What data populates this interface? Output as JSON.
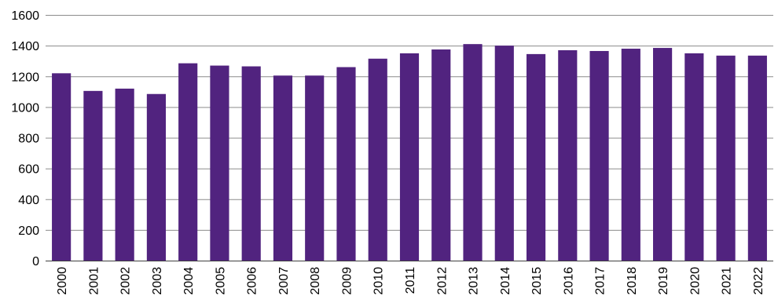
{
  "chart_data": {
    "type": "bar",
    "title": "",
    "xlabel": "",
    "ylabel": "",
    "categories": [
      "2000",
      "2001",
      "2002",
      "2003",
      "2004",
      "2005",
      "2006",
      "2007",
      "2008",
      "2009",
      "2010",
      "2011",
      "2012",
      "2013",
      "2014",
      "2015",
      "2016",
      "2017",
      "2018",
      "2019",
      "2020",
      "2021",
      "2022"
    ],
    "values": [
      1220,
      1105,
      1120,
      1085,
      1285,
      1270,
      1265,
      1205,
      1205,
      1260,
      1315,
      1350,
      1375,
      1410,
      1400,
      1345,
      1370,
      1365,
      1380,
      1385,
      1350,
      1335,
      1335
    ],
    "ylim": [
      0,
      1600
    ],
    "yticks": [
      "0",
      "200",
      "400",
      "600",
      "800",
      "1000",
      "1200",
      "1400",
      "1600"
    ],
    "grid": true,
    "legend": "none",
    "bar_color": "#51237f"
  }
}
